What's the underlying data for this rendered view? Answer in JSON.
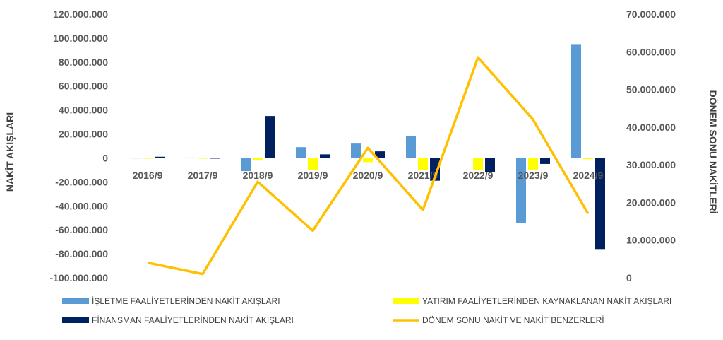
{
  "chart_data": {
    "type": "bar",
    "categories": [
      "2016/9",
      "2017/9",
      "2018/9",
      "2019/9",
      "2020/9",
      "2021/9",
      "2022/9",
      "2023/9",
      "2024/9"
    ],
    "ylabel": "NAKİT AKIŞLARI",
    "y2label": "DÖNEM SONU NAKİTLERİ",
    "ylim": [
      -100000000,
      120000000
    ],
    "y2lim": [
      0,
      70000000
    ],
    "y_ticks": [
      "120.000.000",
      "100.000.000",
      "80.000.000",
      "60.000.000",
      "40.000.000",
      "20.000.000",
      "0",
      "-20.000.000",
      "-40.000.000",
      "-60.000.000",
      "-80.000.000",
      "-100.000.000"
    ],
    "y_tick_values": [
      120000000,
      100000000,
      80000000,
      60000000,
      40000000,
      20000000,
      0,
      -20000000,
      -40000000,
      -60000000,
      -80000000,
      -100000000
    ],
    "y2_ticks": [
      "70.000.000",
      "60.000.000",
      "50.000.000",
      "40.000.000",
      "30.000.000",
      "20.000.000",
      "10.000.000",
      "0"
    ],
    "y2_tick_values": [
      70000000,
      60000000,
      50000000,
      40000000,
      30000000,
      20000000,
      10000000,
      0
    ],
    "legend_position": "bottom",
    "grid": false,
    "series": [
      {
        "name": "İŞLETME FAALİYETLERİNDEN NAKİT AKIŞLARI",
        "kind": "bar",
        "axis": "left",
        "color": "#5B9BD5",
        "values": [
          200000,
          300000,
          -11000000,
          9000000,
          12000000,
          18000000,
          0,
          -54000000,
          95000000
        ]
      },
      {
        "name": "YATIRIM FAALİYETLERİNDEN KAYNAKLANAN NAKİT AKIŞLARI",
        "kind": "bar",
        "axis": "left",
        "color": "#FFFF00",
        "values": [
          -100000,
          -200000,
          -1500000,
          -10000000,
          -3500000,
          -10000000,
          -10000000,
          -10000000,
          -1000000
        ]
      },
      {
        "name": "FİNANSMAN FAALİYETLERİNDEN NAKİT AKIŞLARI",
        "kind": "bar",
        "axis": "left",
        "color": "#002060",
        "values": [
          1000000,
          -500000,
          35000000,
          3000000,
          5500000,
          -19000000,
          -12000000,
          -5000000,
          -76000000
        ]
      },
      {
        "name": "DÖNEM SONU NAKİT VE NAKİT BENZERLERİ",
        "kind": "line",
        "axis": "right",
        "color": "#FFC000",
        "values": [
          4000000,
          1000000,
          25500000,
          12500000,
          34500000,
          18000000,
          58500000,
          42000000,
          17000000
        ]
      }
    ]
  }
}
